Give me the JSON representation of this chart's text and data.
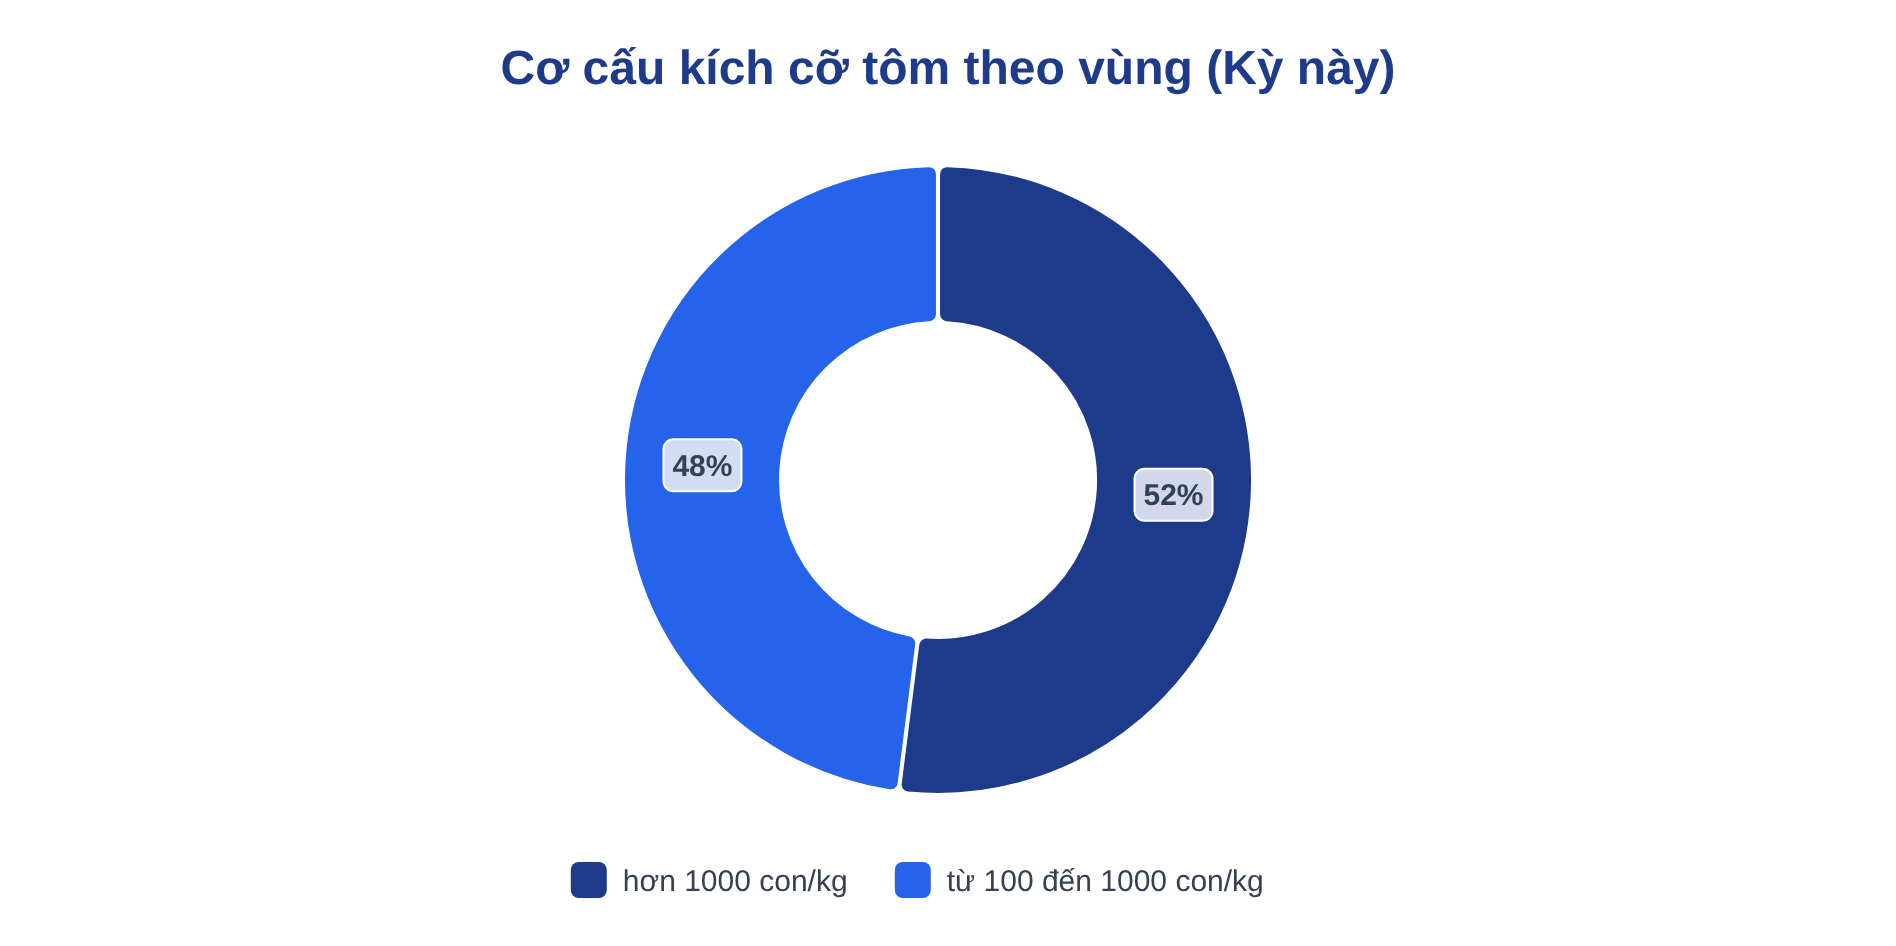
{
  "chart_data": {
    "type": "donut",
    "title": "Cơ cấu kích cỡ tôm theo vùng (Kỳ này)",
    "categories": [
      "hơn 1000 con/kg",
      "từ 100 đến 1000 con/kg"
    ],
    "values": [
      52,
      48
    ],
    "colors": [
      "#1e3a8a",
      "#2563eb"
    ],
    "value_labels": [
      "52%",
      "48%"
    ],
    "legend": "bottom"
  }
}
